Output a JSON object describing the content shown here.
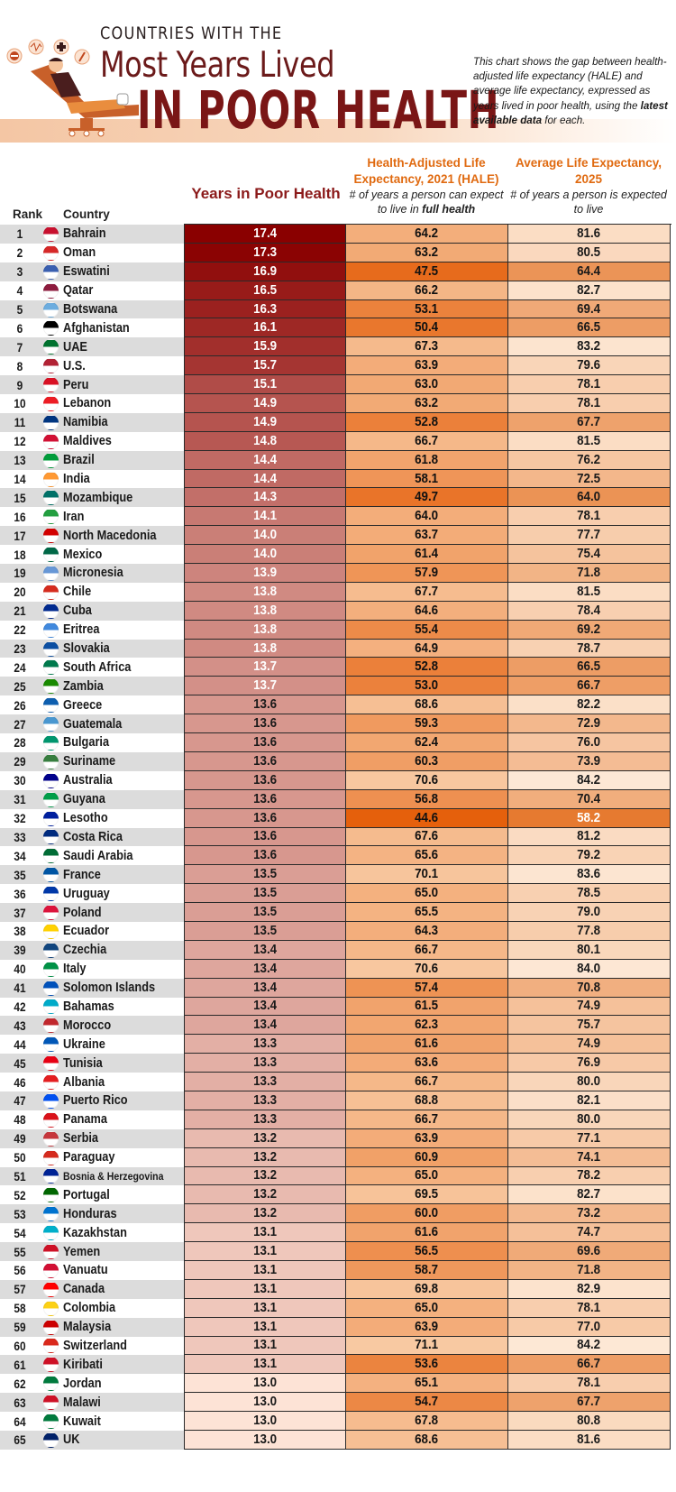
{
  "header": {
    "title_line1": "COUNTRIES WITH THE",
    "title_line2": "Most Years Lived",
    "title_line3": "IN POOR HEALTH",
    "description_part1": "This chart shows the gap between health-adjusted life expectancy (HALE) and average life expectancy, expressed as years lived in poor health, using the ",
    "description_bold": "latest available data",
    "description_part2": " for each.",
    "illustration": "person-reclining-in-medical-chair-icon"
  },
  "columns": {
    "rank": "Rank",
    "country": "Country",
    "years_poor_health": "Years in Poor Health",
    "hale_title": "Health-Adjusted Life Expectancy, 2021 (HALE)",
    "hale_sub_part1": "# of years a person can expect to live in ",
    "hale_sub_bold": "full health",
    "avg_title": "Average Life Expectancy, 2025",
    "avg_sub": "# of years a person is expected to live"
  },
  "colors": {
    "title_dark_red": "#7a1616",
    "years_scale_high": "#8a0000",
    "years_scale_low": "#fde3d6",
    "hale_scale_low": "#e5600c",
    "hale_scale_high": "#f8c9a2",
    "avg_scale_low": "#e67a30",
    "avg_scale_high": "#fde8d5",
    "header_orange": "#e06a10"
  },
  "chart_data": {
    "type": "table",
    "title": "Countries with the Most Years Lived in Poor Health",
    "columns": [
      "Rank",
      "Country",
      "Years in Poor Health",
      "Health-Adjusted Life Expectancy, 2021 (HALE)",
      "Average Life Expectancy, 2025"
    ],
    "rows": [
      {
        "rank": 1,
        "country": "Bahrain",
        "flag": "bahrain-flag-icon",
        "years": 17.4,
        "hale": 64.2,
        "avg": 81.6
      },
      {
        "rank": 2,
        "country": "Oman",
        "flag": "oman-flag-icon",
        "years": 17.3,
        "hale": 63.2,
        "avg": 80.5
      },
      {
        "rank": 3,
        "country": "Eswatini",
        "flag": "eswatini-flag-icon",
        "years": 16.9,
        "hale": 47.5,
        "avg": 64.4
      },
      {
        "rank": 4,
        "country": "Qatar",
        "flag": "qatar-flag-icon",
        "years": 16.5,
        "hale": 66.2,
        "avg": 82.7
      },
      {
        "rank": 5,
        "country": "Botswana",
        "flag": "botswana-flag-icon",
        "years": 16.3,
        "hale": 53.1,
        "avg": 69.4
      },
      {
        "rank": 6,
        "country": "Afghanistan",
        "flag": "afghanistan-flag-icon",
        "years": 16.1,
        "hale": 50.4,
        "avg": 66.5
      },
      {
        "rank": 7,
        "country": "UAE",
        "flag": "uae-flag-icon",
        "years": 15.9,
        "hale": 67.3,
        "avg": 83.2
      },
      {
        "rank": 8,
        "country": "U.S.",
        "flag": "us-flag-icon",
        "years": 15.7,
        "hale": 63.9,
        "avg": 79.6
      },
      {
        "rank": 9,
        "country": "Peru",
        "flag": "peru-flag-icon",
        "years": 15.1,
        "hale": 63.0,
        "avg": 78.1
      },
      {
        "rank": 10,
        "country": "Lebanon",
        "flag": "lebanon-flag-icon",
        "years": 14.9,
        "hale": 63.2,
        "avg": 78.1
      },
      {
        "rank": 11,
        "country": "Namibia",
        "flag": "namibia-flag-icon",
        "years": 14.9,
        "hale": 52.8,
        "avg": 67.7
      },
      {
        "rank": 12,
        "country": "Maldives",
        "flag": "maldives-flag-icon",
        "years": 14.8,
        "hale": 66.7,
        "avg": 81.5
      },
      {
        "rank": 13,
        "country": "Brazil",
        "flag": "brazil-flag-icon",
        "years": 14.4,
        "hale": 61.8,
        "avg": 76.2
      },
      {
        "rank": 14,
        "country": "India",
        "flag": "india-flag-icon",
        "years": 14.4,
        "hale": 58.1,
        "avg": 72.5
      },
      {
        "rank": 15,
        "country": "Mozambique",
        "flag": "mozambique-flag-icon",
        "years": 14.3,
        "hale": 49.7,
        "avg": 64.0
      },
      {
        "rank": 16,
        "country": "Iran",
        "flag": "iran-flag-icon",
        "years": 14.1,
        "hale": 64.0,
        "avg": 78.1
      },
      {
        "rank": 17,
        "country": "North Macedonia",
        "flag": "north-macedonia-flag-icon",
        "years": 14.0,
        "hale": 63.7,
        "avg": 77.7
      },
      {
        "rank": 18,
        "country": "Mexico",
        "flag": "mexico-flag-icon",
        "years": 14.0,
        "hale": 61.4,
        "avg": 75.4
      },
      {
        "rank": 19,
        "country": "Micronesia",
        "flag": "micronesia-flag-icon",
        "years": 13.9,
        "hale": 57.9,
        "avg": 71.8
      },
      {
        "rank": 20,
        "country": "Chile",
        "flag": "chile-flag-icon",
        "years": 13.8,
        "hale": 67.7,
        "avg": 81.5
      },
      {
        "rank": 21,
        "country": "Cuba",
        "flag": "cuba-flag-icon",
        "years": 13.8,
        "hale": 64.6,
        "avg": 78.4
      },
      {
        "rank": 22,
        "country": "Eritrea",
        "flag": "eritrea-flag-icon",
        "years": 13.8,
        "hale": 55.4,
        "avg": 69.2
      },
      {
        "rank": 23,
        "country": "Slovakia",
        "flag": "slovakia-flag-icon",
        "years": 13.8,
        "hale": 64.9,
        "avg": 78.7
      },
      {
        "rank": 24,
        "country": "South Africa",
        "flag": "south-africa-flag-icon",
        "years": 13.7,
        "hale": 52.8,
        "avg": 66.5
      },
      {
        "rank": 25,
        "country": "Zambia",
        "flag": "zambia-flag-icon",
        "years": 13.7,
        "hale": 53.0,
        "avg": 66.7
      },
      {
        "rank": 26,
        "country": "Greece",
        "flag": "greece-flag-icon",
        "years": 13.6,
        "hale": 68.6,
        "avg": 82.2
      },
      {
        "rank": 27,
        "country": "Guatemala",
        "flag": "guatemala-flag-icon",
        "years": 13.6,
        "hale": 59.3,
        "avg": 72.9
      },
      {
        "rank": 28,
        "country": "Bulgaria",
        "flag": "bulgaria-flag-icon",
        "years": 13.6,
        "hale": 62.4,
        "avg": 76.0
      },
      {
        "rank": 29,
        "country": "Suriname",
        "flag": "suriname-flag-icon",
        "years": 13.6,
        "hale": 60.3,
        "avg": 73.9
      },
      {
        "rank": 30,
        "country": "Australia",
        "flag": "australia-flag-icon",
        "years": 13.6,
        "hale": 70.6,
        "avg": 84.2
      },
      {
        "rank": 31,
        "country": "Guyana",
        "flag": "guyana-flag-icon",
        "years": 13.6,
        "hale": 56.8,
        "avg": 70.4
      },
      {
        "rank": 32,
        "country": "Lesotho",
        "flag": "lesotho-flag-icon",
        "years": 13.6,
        "hale": 44.6,
        "avg": 58.2
      },
      {
        "rank": 33,
        "country": "Costa Rica",
        "flag": "costa-rica-flag-icon",
        "years": 13.6,
        "hale": 67.6,
        "avg": 81.2
      },
      {
        "rank": 34,
        "country": "Saudi Arabia",
        "flag": "saudi-arabia-flag-icon",
        "years": 13.6,
        "hale": 65.6,
        "avg": 79.2
      },
      {
        "rank": 35,
        "country": "France",
        "flag": "france-flag-icon",
        "years": 13.5,
        "hale": 70.1,
        "avg": 83.6
      },
      {
        "rank": 36,
        "country": "Uruguay",
        "flag": "uruguay-flag-icon",
        "years": 13.5,
        "hale": 65.0,
        "avg": 78.5
      },
      {
        "rank": 37,
        "country": "Poland",
        "flag": "poland-flag-icon",
        "years": 13.5,
        "hale": 65.5,
        "avg": 79.0
      },
      {
        "rank": 38,
        "country": "Ecuador",
        "flag": "ecuador-flag-icon",
        "years": 13.5,
        "hale": 64.3,
        "avg": 77.8
      },
      {
        "rank": 39,
        "country": "Czechia",
        "flag": "czechia-flag-icon",
        "years": 13.4,
        "hale": 66.7,
        "avg": 80.1
      },
      {
        "rank": 40,
        "country": "Italy",
        "flag": "italy-flag-icon",
        "years": 13.4,
        "hale": 70.6,
        "avg": 84.0
      },
      {
        "rank": 41,
        "country": "Solomon Islands",
        "flag": "solomon-islands-flag-icon",
        "years": 13.4,
        "hale": 57.4,
        "avg": 70.8
      },
      {
        "rank": 42,
        "country": "Bahamas",
        "flag": "bahamas-flag-icon",
        "years": 13.4,
        "hale": 61.5,
        "avg": 74.9
      },
      {
        "rank": 43,
        "country": "Morocco",
        "flag": "morocco-flag-icon",
        "years": 13.4,
        "hale": 62.3,
        "avg": 75.7
      },
      {
        "rank": 44,
        "country": "Ukraine",
        "flag": "ukraine-flag-icon",
        "years": 13.3,
        "hale": 61.6,
        "avg": 74.9
      },
      {
        "rank": 45,
        "country": "Tunisia",
        "flag": "tunisia-flag-icon",
        "years": 13.3,
        "hale": 63.6,
        "avg": 76.9
      },
      {
        "rank": 46,
        "country": "Albania",
        "flag": "albania-flag-icon",
        "years": 13.3,
        "hale": 66.7,
        "avg": 80.0
      },
      {
        "rank": 47,
        "country": "Puerto Rico",
        "flag": "puerto-rico-flag-icon",
        "years": 13.3,
        "hale": 68.8,
        "avg": 82.1
      },
      {
        "rank": 48,
        "country": "Panama",
        "flag": "panama-flag-icon",
        "years": 13.3,
        "hale": 66.7,
        "avg": 80.0
      },
      {
        "rank": 49,
        "country": "Serbia",
        "flag": "serbia-flag-icon",
        "years": 13.2,
        "hale": 63.9,
        "avg": 77.1
      },
      {
        "rank": 50,
        "country": "Paraguay",
        "flag": "paraguay-flag-icon",
        "years": 13.2,
        "hale": 60.9,
        "avg": 74.1
      },
      {
        "rank": 51,
        "country": "Bosnia & Herzegovina",
        "flag": "bosnia-herzegovina-flag-icon",
        "years": 13.2,
        "hale": 65.0,
        "avg": 78.2
      },
      {
        "rank": 52,
        "country": "Portugal",
        "flag": "portugal-flag-icon",
        "years": 13.2,
        "hale": 69.5,
        "avg": 82.7
      },
      {
        "rank": 53,
        "country": "Honduras",
        "flag": "honduras-flag-icon",
        "years": 13.2,
        "hale": 60.0,
        "avg": 73.2
      },
      {
        "rank": 54,
        "country": "Kazakhstan",
        "flag": "kazakhstan-flag-icon",
        "years": 13.1,
        "hale": 61.6,
        "avg": 74.7
      },
      {
        "rank": 55,
        "country": "Yemen",
        "flag": "yemen-flag-icon",
        "years": 13.1,
        "hale": 56.5,
        "avg": 69.6
      },
      {
        "rank": 56,
        "country": "Vanuatu",
        "flag": "vanuatu-flag-icon",
        "years": 13.1,
        "hale": 58.7,
        "avg": 71.8
      },
      {
        "rank": 57,
        "country": "Canada",
        "flag": "canada-flag-icon",
        "years": 13.1,
        "hale": 69.8,
        "avg": 82.9
      },
      {
        "rank": 58,
        "country": "Colombia",
        "flag": "colombia-flag-icon",
        "years": 13.1,
        "hale": 65.0,
        "avg": 78.1
      },
      {
        "rank": 59,
        "country": "Malaysia",
        "flag": "malaysia-flag-icon",
        "years": 13.1,
        "hale": 63.9,
        "avg": 77.0
      },
      {
        "rank": 60,
        "country": "Switzerland",
        "flag": "switzerland-flag-icon",
        "years": 13.1,
        "hale": 71.1,
        "avg": 84.2
      },
      {
        "rank": 61,
        "country": "Kiribati",
        "flag": "kiribati-flag-icon",
        "years": 13.1,
        "hale": 53.6,
        "avg": 66.7
      },
      {
        "rank": 62,
        "country": "Jordan",
        "flag": "jordan-flag-icon",
        "years": 13.0,
        "hale": 65.1,
        "avg": 78.1
      },
      {
        "rank": 63,
        "country": "Malawi",
        "flag": "malawi-flag-icon",
        "years": 13.0,
        "hale": 54.7,
        "avg": 67.7
      },
      {
        "rank": 64,
        "country": "Kuwait",
        "flag": "kuwait-flag-icon",
        "years": 13.0,
        "hale": 67.8,
        "avg": 80.8
      },
      {
        "rank": 65,
        "country": "UK",
        "flag": "uk-flag-icon",
        "years": 13.0,
        "hale": 68.6,
        "avg": 81.6
      }
    ]
  }
}
